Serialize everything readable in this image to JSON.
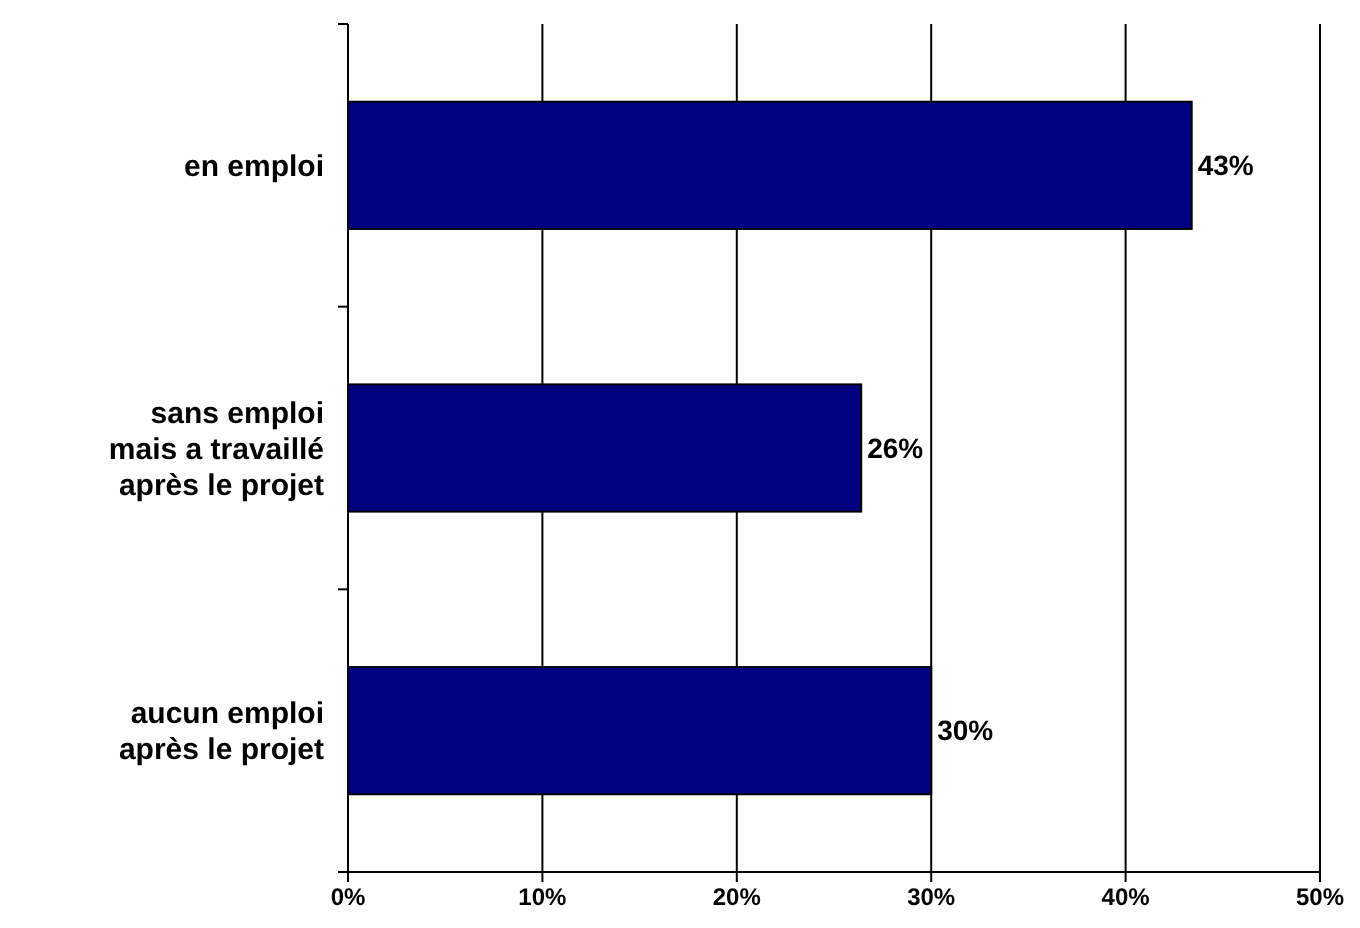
{
  "chart_data": {
    "type": "bar",
    "orientation": "horizontal",
    "categories": [
      "en emploi",
      "sans emploi\nmais a travaillé\naprès le projet",
      "aucun emploi\naprès le projet"
    ],
    "values": [
      43.4,
      26.4,
      30
    ],
    "value_labels": [
      "43%",
      "26%",
      "30%"
    ],
    "color": "#000080",
    "xlim": [
      0,
      50
    ],
    "xticks": [
      {
        "value": 0,
        "label": "0%"
      },
      {
        "value": 10,
        "label": "10%"
      },
      {
        "value": 20,
        "label": "20%"
      },
      {
        "value": 30,
        "label": "30%"
      },
      {
        "value": 40,
        "label": "40%"
      },
      {
        "value": 50,
        "label": "50%"
      }
    ],
    "grid": "x"
  }
}
